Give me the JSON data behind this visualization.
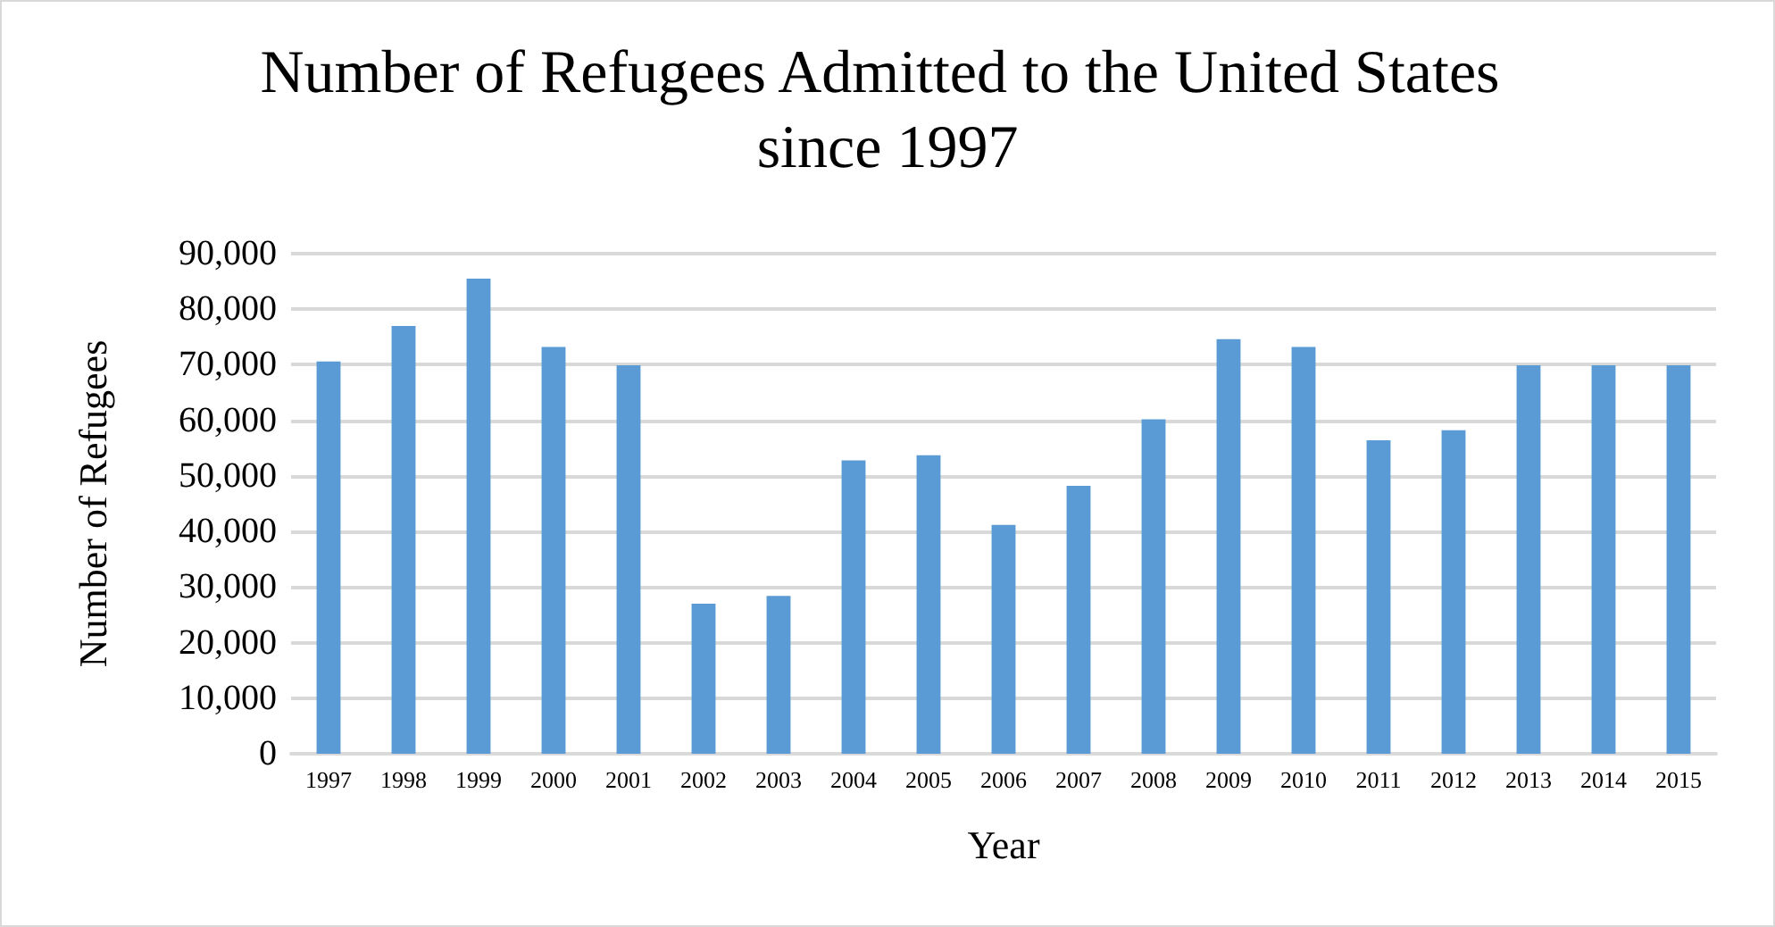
{
  "chart_data": {
    "type": "bar",
    "title": "Number of Refugees Admitted to the United States since 1997",
    "xlabel": "Year",
    "ylabel": "Number of Refugees",
    "categories": [
      "1997",
      "1998",
      "1999",
      "2000",
      "2001",
      "2002",
      "2003",
      "2004",
      "2005",
      "2006",
      "2007",
      "2008",
      "2009",
      "2010",
      "2011",
      "2012",
      "2013",
      "2014",
      "2015"
    ],
    "values": [
      70600,
      77000,
      85500,
      73200,
      69900,
      27000,
      28400,
      52800,
      53700,
      41200,
      48200,
      60200,
      74600,
      73200,
      56400,
      58200,
      69900,
      69900,
      69900
    ],
    "color": "#5b9bd5",
    "ylim": [
      0,
      90000
    ],
    "yticks": [
      0,
      {
        "value": 10000,
        "label": "10,000"
      },
      {
        "value": 20000,
        "label": "20,000"
      },
      {
        "value": 30000,
        "label": "30,000"
      },
      {
        "value": 40000,
        "label": "40,000"
      },
      {
        "value": 50000,
        "label": "50,000"
      },
      {
        "value": 60000,
        "label": "60,000"
      },
      {
        "value": 70000,
        "label": "70,000"
      },
      {
        "value": 80000,
        "label": "80,000"
      },
      {
        "value": 90000,
        "label": "90,000"
      }
    ],
    "grid": "y"
  }
}
